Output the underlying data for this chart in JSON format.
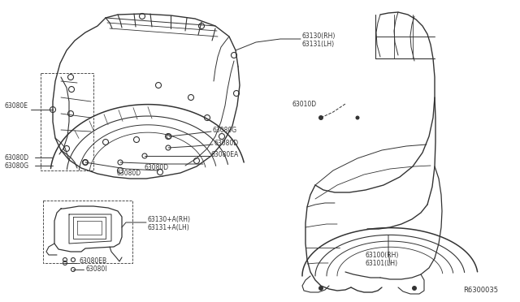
{
  "bg_color": "#ffffff",
  "line_color": "#333333",
  "text_color": "#333333",
  "diagram_id": "R6300035",
  "labels": {
    "63130RH": "63130(RH)",
    "63131LH": "63131(LH)",
    "63080E": "63080E",
    "63080G_top": "63080G",
    "63080D_top": "63080D",
    "63080EA": "63080EA",
    "63080D_mid1": "63080D",
    "63080D_mid2": "63080D",
    "63080D_left": "63080D",
    "63080G_left": "63080G",
    "63130A_RH": "63130+A(RH)",
    "63131A_LH": "63131+A(LH)",
    "63080EB": "63080EB",
    "63080I": "63080I",
    "63010D": "63010D",
    "63100RH": "63100(RH)",
    "63101LH": "63101(LH)"
  }
}
